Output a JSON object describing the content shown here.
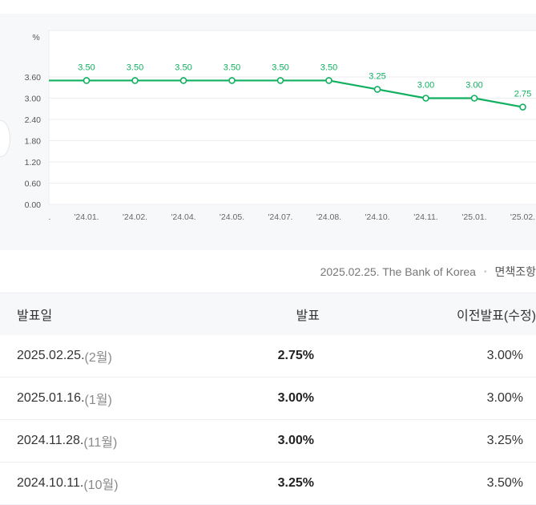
{
  "chart_data": {
    "type": "line",
    "ylabel": "%",
    "yticks": [
      "0.00",
      "0.60",
      "1.20",
      "1.80",
      "2.40",
      "3.00",
      "3.60"
    ],
    "ylim": [
      0,
      4.2
    ],
    "categories": [
      "'24.01.",
      "'24.02.",
      "'24.04.",
      "'24.05.",
      "'24.07.",
      "'24.08.",
      "'24.10.",
      "'24.11.",
      "'25.01.",
      "'25.02."
    ],
    "leading_partial_label": ".",
    "values": [
      3.5,
      3.5,
      3.5,
      3.5,
      3.5,
      3.5,
      3.25,
      3.0,
      3.0,
      2.75
    ],
    "value_labels": [
      "3.50",
      "3.50",
      "3.50",
      "3.50",
      "3.50",
      "3.50",
      "3.25",
      "3.00",
      "3.00",
      "2.75"
    ],
    "line_color": "#10b060",
    "grid": true
  },
  "source": {
    "date_org": "2025.02.25. The Bank of Korea",
    "disclaimer": "면책조항"
  },
  "table": {
    "headers": {
      "date": "발표일",
      "value": "발표",
      "previous": "이전발표(수정)"
    },
    "rows": [
      {
        "date": "2025.02.25.",
        "month": "(2월)",
        "value": "2.75%",
        "previous": "3.00%"
      },
      {
        "date": "2025.01.16.",
        "month": "(1월)",
        "value": "3.00%",
        "previous": "3.00%"
      },
      {
        "date": "2024.11.28.",
        "month": "(11월)",
        "value": "3.00%",
        "previous": "3.25%"
      },
      {
        "date": "2024.10.11.",
        "month": "(10월)",
        "value": "3.25%",
        "previous": "3.50%"
      }
    ]
  }
}
